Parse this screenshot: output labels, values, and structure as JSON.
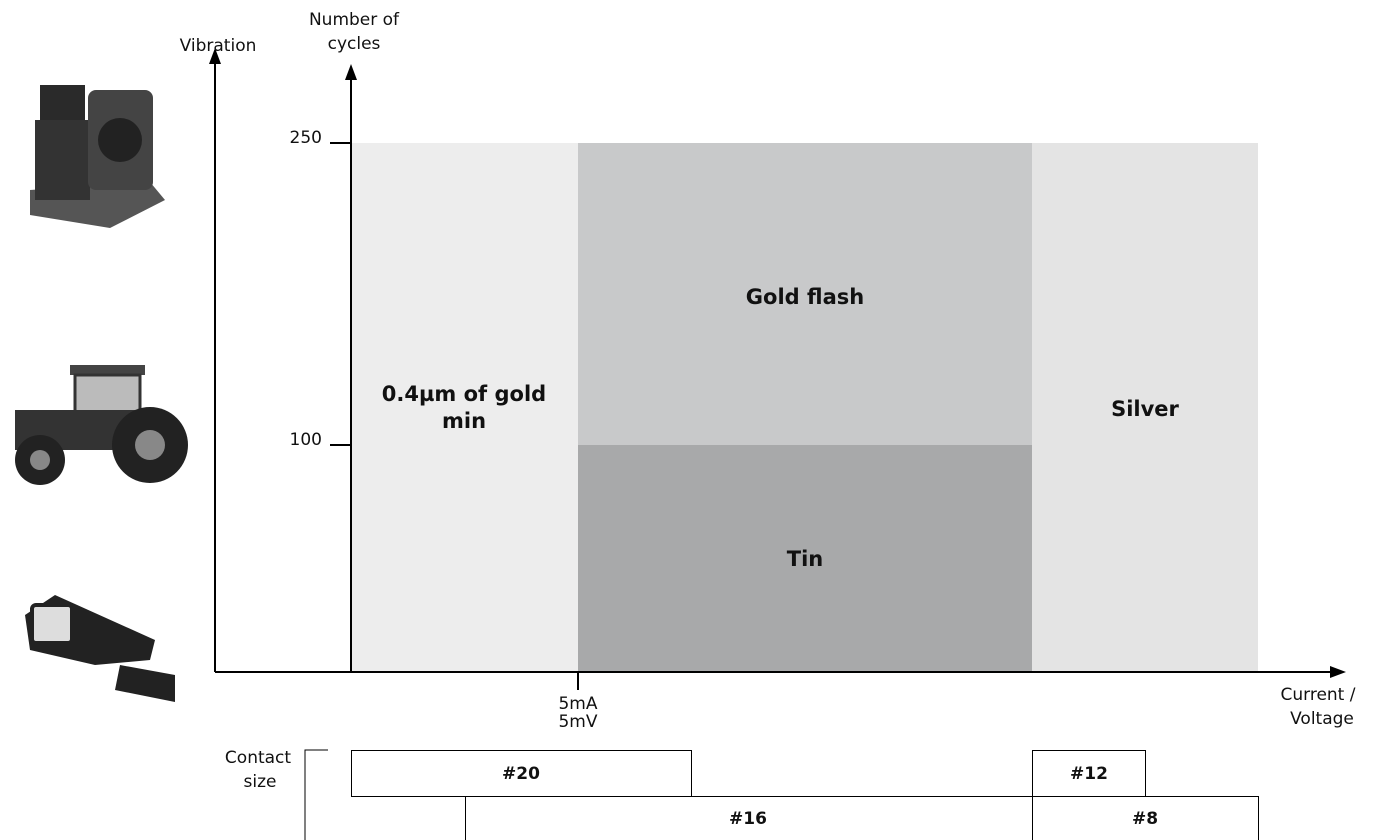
{
  "axes": {
    "vibration": "Vibration",
    "cycles": [
      "Number of",
      "cycles"
    ],
    "current": [
      "Current /",
      "Voltage"
    ],
    "ticks": [
      "250",
      "100"
    ],
    "x_tick": [
      "5mA",
      "5mV"
    ]
  },
  "regions": {
    "gold_min": [
      "0.4µm of gold",
      "min"
    ],
    "gold_flash": "Gold flash",
    "tin": "Tin",
    "silver": "Silver"
  },
  "contact_size": {
    "label": [
      "Contact",
      "size"
    ],
    "sizes": [
      "#20",
      "#12",
      "#16",
      "#8"
    ]
  }
}
